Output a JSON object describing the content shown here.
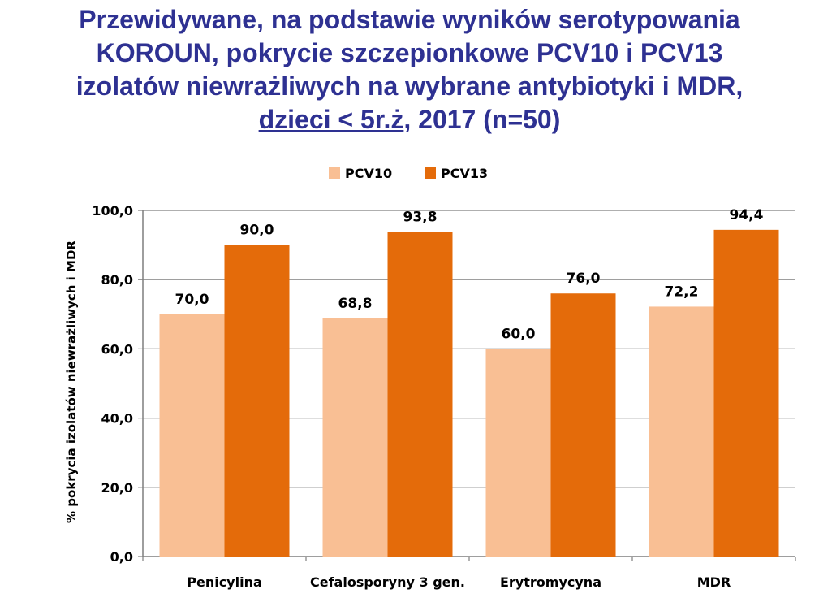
{
  "title": {
    "line1": "Przewidywane, na podstawie wyników serotypowania",
    "line2": "KOROUN, pokrycie szczepionkowe PCV10 i PCV13",
    "line3": "izolatów niewrażliwych na wybrane antybiotyki i MDR,",
    "line4_underlined": "dzieci < 5r.ż",
    "line4_rest": ", 2017 (n=50)"
  },
  "colors": {
    "title": "#2e3192",
    "pcv10": "#f9bf94",
    "pcv13": "#e46b0a",
    "grid": "#7f7f7f",
    "text": "#000000"
  },
  "chart_data": {
    "type": "bar",
    "categories": [
      "Penicylina",
      "Cefalosporyny 3 gen.",
      "Erytromycyna",
      "MDR"
    ],
    "series": [
      {
        "name": "PCV10",
        "values": [
          70.0,
          68.8,
          60.0,
          72.2
        ]
      },
      {
        "name": "PCV13",
        "values": [
          90.0,
          93.8,
          76.0,
          94.4
        ]
      }
    ],
    "value_labels": [
      [
        "70,0",
        "68,8",
        "60,0",
        "72,2"
      ],
      [
        "90,0",
        "93,8",
        "76,0",
        "94,4"
      ]
    ],
    "ylabel": "% pokrycia izolatów niewrażliwych i MDR",
    "ylim": [
      0,
      100
    ],
    "yticks": [
      0,
      20,
      40,
      60,
      80,
      100
    ],
    "ytick_labels": [
      "0,0",
      "20,0",
      "40,0",
      "60,0",
      "80,0",
      "100,0"
    ],
    "grid": true,
    "legend": "top-center"
  }
}
